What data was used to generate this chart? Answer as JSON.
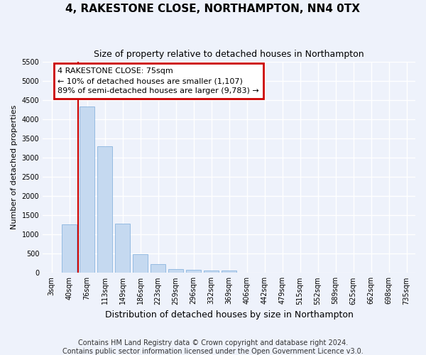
{
  "title": "4, RAKESTONE CLOSE, NORTHAMPTON, NN4 0TX",
  "subtitle": "Size of property relative to detached houses in Northampton",
  "xlabel": "Distribution of detached houses by size in Northampton",
  "ylabel": "Number of detached properties",
  "footnote1": "Contains HM Land Registry data © Crown copyright and database right 2024.",
  "footnote2": "Contains public sector information licensed under the Open Government Licence v3.0.",
  "bar_labels": [
    "3sqm",
    "40sqm",
    "76sqm",
    "113sqm",
    "149sqm",
    "186sqm",
    "223sqm",
    "259sqm",
    "296sqm",
    "332sqm",
    "369sqm",
    "406sqm",
    "442sqm",
    "479sqm",
    "515sqm",
    "552sqm",
    "589sqm",
    "625sqm",
    "662sqm",
    "698sqm",
    "735sqm"
  ],
  "bar_values": [
    0,
    1260,
    4330,
    3300,
    1280,
    490,
    220,
    90,
    75,
    55,
    55,
    0,
    0,
    0,
    0,
    0,
    0,
    0,
    0,
    0,
    0
  ],
  "bar_color": "#c5d9f0",
  "bar_edge_color": "#7aabdb",
  "ylim": [
    0,
    5500
  ],
  "yticks": [
    0,
    500,
    1000,
    1500,
    2000,
    2500,
    3000,
    3500,
    4000,
    4500,
    5000,
    5500
  ],
  "annotation_title": "4 RAKESTONE CLOSE: 75sqm",
  "annotation_line1": "← 10% of detached houses are smaller (1,107)",
  "annotation_line2": "89% of semi-detached houses are larger (9,783) →",
  "annotation_box_color": "#ffffff",
  "annotation_border_color": "#cc0000",
  "vline_color": "#cc0000",
  "vline_position": 1.5,
  "background_color": "#eef2fb",
  "grid_color": "#ffffff",
  "title_fontsize": 11,
  "subtitle_fontsize": 9,
  "xlabel_fontsize": 9,
  "ylabel_fontsize": 8,
  "tick_fontsize": 7,
  "footnote_fontsize": 7,
  "annotation_fontsize": 8
}
